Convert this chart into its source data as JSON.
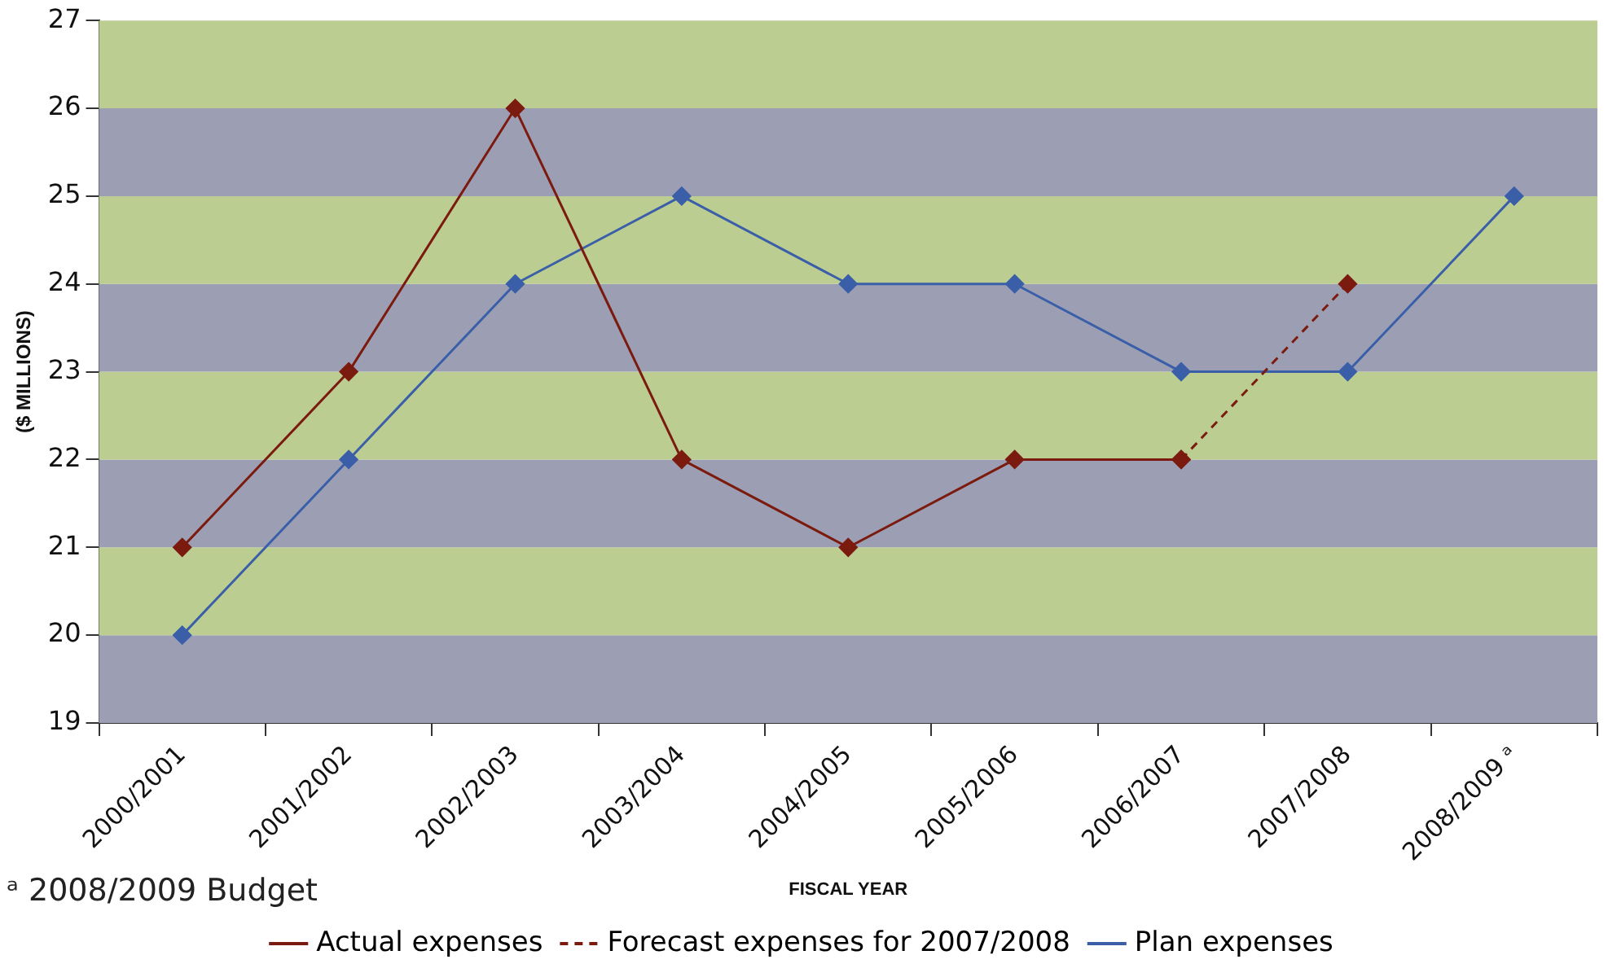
{
  "chart_data": {
    "type": "line",
    "xlabel": "FISCAL YEAR",
    "ylabel": "($ MILLIONS)",
    "categories": [
      "2000/2001",
      "2001/2002",
      "2002/2003",
      "2003/2004",
      "2004/2005",
      "2005/2006",
      "2006/2007",
      "2007/2008",
      "2008/2009 ᵃ"
    ],
    "series": [
      {
        "name": "Actual expenses",
        "color": "#7b1a0e",
        "values": [
          21,
          23,
          26,
          22,
          21,
          22,
          22,
          null,
          null
        ]
      },
      {
        "name": "Forecast expenses for 2007/2008",
        "color": "#7b1a0e",
        "line_style": "dashed",
        "values": [
          null,
          null,
          null,
          null,
          null,
          null,
          22,
          24,
          null
        ]
      },
      {
        "name": "Plan expenses",
        "color": "#3a5fa8",
        "values": [
          20,
          22,
          24,
          25,
          24,
          24,
          23,
          23,
          25
        ]
      }
    ],
    "ylim": [
      19,
      27
    ],
    "yticks": [
      19,
      20,
      21,
      22,
      23,
      24,
      25,
      26,
      27
    ],
    "bands": [
      {
        "axis": "y",
        "from": 19,
        "to": 20,
        "color": "#9c9fb3"
      },
      {
        "axis": "y",
        "from": 20,
        "to": 21,
        "color": "#bccd92"
      },
      {
        "axis": "y",
        "from": 21,
        "to": 22,
        "color": "#9c9fb3"
      },
      {
        "axis": "y",
        "from": 22,
        "to": 23,
        "color": "#bccd92"
      },
      {
        "axis": "y",
        "from": 23,
        "to": 24,
        "color": "#9c9fb3"
      },
      {
        "axis": "y",
        "from": 24,
        "to": 25,
        "color": "#bccd92"
      },
      {
        "axis": "y",
        "from": 25,
        "to": 26,
        "color": "#9c9fb3"
      },
      {
        "axis": "y",
        "from": 26,
        "to": 27,
        "color": "#bccd92"
      }
    ],
    "marker": "diamond",
    "line_style": "solid",
    "legend": "bottom",
    "grid": false,
    "annotations": [
      "ᵃ 2008/2009 Budget"
    ]
  }
}
